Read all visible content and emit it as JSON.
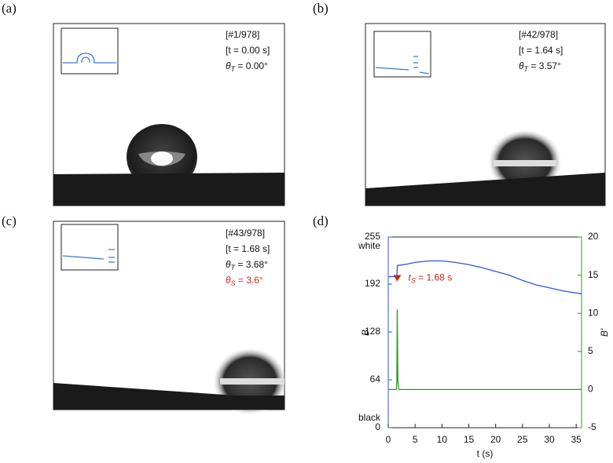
{
  "panels": [
    {
      "label": "(a)",
      "frame": "[#1/978]",
      "time": "[t = 0.00 s]",
      "angle": {
        "symbol": "θ",
        "sub": "T",
        "rest": " = 0.00°"
      }
    },
    {
      "label": "(b)",
      "frame": "[#42/978]",
      "time": "[t = 1.64 s]",
      "angle": {
        "symbol": "θ",
        "sub": "T",
        "rest": " = 3.57°"
      }
    },
    {
      "label": "(c)",
      "frame": "[#43/978]",
      "time": "[t = 1.68 s]",
      "angle": {
        "symbol": "θ",
        "sub": "T",
        "rest": " = 3.68°"
      },
      "angle2": {
        "symbol": "θ",
        "sub": "S",
        "rest": " = 3.6°",
        "color": "#e8231f"
      }
    }
  ],
  "chart_data": {
    "type": "line",
    "label": "(d)",
    "xlabel": "t (s)",
    "ylabel": "B",
    "y2label": "B'",
    "xlim": [
      0,
      36
    ],
    "xticks": [
      0,
      5,
      10,
      15,
      20,
      25,
      30,
      35
    ],
    "ylim": [
      0,
      255
    ],
    "yticks": [
      0,
      64,
      128,
      192,
      255
    ],
    "ytick_notes": [
      {
        "value": 255,
        "label": "white"
      },
      {
        "value": 0,
        "label": "black"
      }
    ],
    "y2lim": [
      -5,
      20
    ],
    "y2ticks": [
      -5,
      0,
      5,
      10,
      15,
      20
    ],
    "ycolor": "#2f56e0",
    "y2color": "#2a9d1c",
    "series": [
      {
        "name": "B",
        "color": "#2f56e0",
        "x": [
          0,
          1.6,
          1.7,
          3,
          5,
          7.5,
          10,
          12.5,
          15,
          17.5,
          20,
          22.5,
          25,
          27.5,
          30,
          32.5,
          36
        ],
        "values": [
          202,
          202,
          217,
          218,
          221,
          223,
          223,
          221,
          218,
          214,
          209,
          204,
          197,
          191,
          187,
          183,
          179
        ]
      },
      {
        "name": "B'",
        "color": "#2a9d1c",
        "axis": "y2",
        "x": [
          0,
          1.5,
          1.6,
          1.68,
          1.8,
          2,
          36
        ],
        "values": [
          0,
          0,
          1,
          10.5,
          1,
          0,
          0
        ]
      }
    ],
    "annotation": {
      "x": 1.68,
      "y2": 14.6,
      "color": "#c0281c",
      "text": {
        "symbol": "t",
        "sub": "S",
        "rest": " = 1.68 s"
      }
    }
  }
}
